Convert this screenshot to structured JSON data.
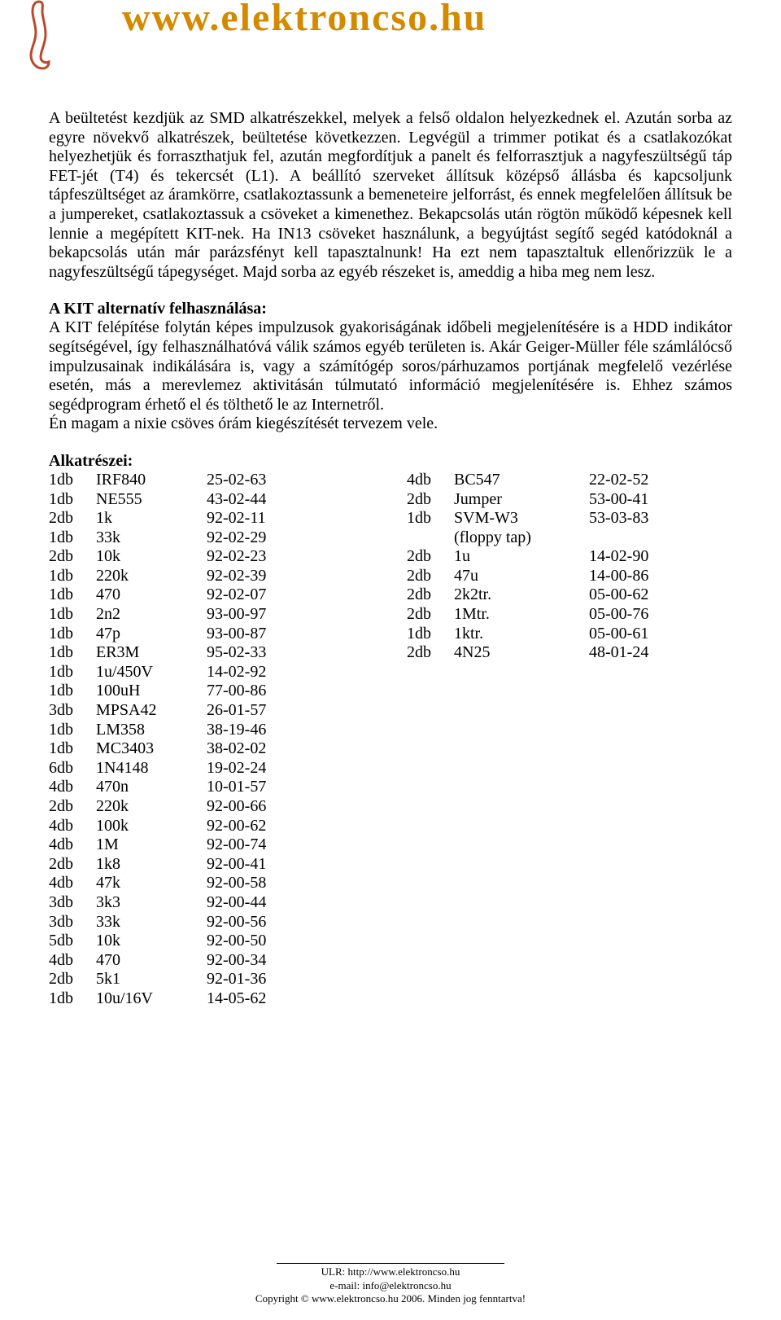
{
  "header": {
    "site_title": "www.elektroncso.hu",
    "title_color": "#d38a00",
    "logo_color": "#d38a00"
  },
  "paragraph1": "A beültetést kezdjük az SMD alkatrészekkel, melyek a felső oldalon helyezkednek el. Azután sorba az egyre növekvő alkatrészek, beültetése következzen. Legvégül a trimmer potikat és a csatlakozókat helyezhetjük és forraszthatjuk fel, azután megfordítjuk a panelt és felforrasztjuk a nagyfeszültségű táp FET-jét (T4) és tekercsét (L1). A beállító szerveket állítsuk középső állásba és kapcsoljunk tápfeszültséget az áramkörre, csatlakoztassunk a bemeneteire jelforrást, és ennek megfelelően állítsuk be a jumpereket, csatlakoztassuk a csöveket a kimenethez. Bekapcsolás után rögtön működő képesnek kell lennie a megépített KIT-nek. Ha  IN13 csöveket használunk, a begyújtást segítő segéd katódoknál a bekapcsolás után már parázsfényt kell tapasztalnunk! Ha ezt nem tapasztaltuk ellenőrizzük le a nagyfeszültségű tápegységet. Majd sorba az egyéb részeket is, ameddig a hiba meg nem lesz.",
  "section2": {
    "heading": "A KIT alternatív felhasználása:",
    "body": "A KIT felépítése folytán képes impulzusok gyakoriságának időbeli megjelenítésére is a HDD indikátor segítségével, így felhasználhatóvá válik számos egyéb területen is. Akár Geiger-Müller féle számlálócső impulzusainak indikálására is, vagy a számítógép soros/párhuzamos portjának megfelelő vezérlése esetén, más a merevlemez aktivitásán túlmutató információ megjelenítésére is. Ehhez számos segédprogram érhető el és tölthető le az Internetről.\nÉn magam a nixie csöves órám kiegészítését tervezem vele."
  },
  "parts": {
    "heading": "Alkatrészei:",
    "left": [
      {
        "qty": "1db",
        "name": "IRF840",
        "code": "25-02-63"
      },
      {
        "qty": "1db",
        "name": "NE555",
        "code": "43-02-44"
      },
      {
        "qty": "2db",
        "name": "1k",
        "code": "92-02-11"
      },
      {
        "qty": "1db",
        "name": "33k",
        "code": "92-02-29"
      },
      {
        "qty": "2db",
        "name": "10k",
        "code": "92-02-23"
      },
      {
        "qty": "1db",
        "name": "220k",
        "code": "92-02-39"
      },
      {
        "qty": "1db",
        "name": "470",
        "code": "92-02-07"
      },
      {
        "qty": "1db",
        "name": "2n2",
        "code": "93-00-97"
      },
      {
        "qty": "1db",
        "name": "47p",
        "code": "93-00-87"
      },
      {
        "qty": "1db",
        "name": "ER3M",
        "code": "95-02-33"
      },
      {
        "qty": "1db",
        "name": "1u/450V",
        "code": "14-02-92"
      },
      {
        "qty": "1db",
        "name": "100uH",
        "code": "77-00-86"
      },
      {
        "qty": "3db",
        "name": "MPSA42",
        "code": "26-01-57"
      },
      {
        "qty": "1db",
        "name": "LM358",
        "code": "38-19-46"
      },
      {
        "qty": "1db",
        "name": "MC3403",
        "code": "38-02-02"
      },
      {
        "qty": "6db",
        "name": "1N4148",
        "code": "19-02-24"
      },
      {
        "qty": "4db",
        "name": "470n",
        "code": "10-01-57"
      },
      {
        "qty": "2db",
        "name": "220k",
        "code": "92-00-66"
      },
      {
        "qty": "4db",
        "name": "100k",
        "code": "92-00-62"
      },
      {
        "qty": "4db",
        "name": "1M",
        "code": "92-00-74"
      },
      {
        "qty": "2db",
        "name": "1k8",
        "code": "92-00-41"
      },
      {
        "qty": "4db",
        "name": "47k",
        "code": "92-00-58"
      },
      {
        "qty": "3db",
        "name": "3k3",
        "code": "92-00-44"
      },
      {
        "qty": "3db",
        "name": "33k",
        "code": "92-00-56"
      },
      {
        "qty": "5db",
        "name": "10k",
        "code": "92-00-50"
      },
      {
        "qty": "4db",
        "name": "470",
        "code": "92-00-34"
      },
      {
        "qty": "2db",
        "name": "5k1",
        "code": "92-01-36"
      },
      {
        "qty": "1db",
        "name": "10u/16V",
        "code": "14-05-62"
      }
    ],
    "right": [
      {
        "qty": "4db",
        "name": "BC547",
        "code": "22-02-52"
      },
      {
        "qty": "2db",
        "name": "Jumper",
        "code": "53-00-41"
      },
      {
        "qty": "1db",
        "name": "SVM-W3",
        "code": "53-03-83",
        "note": "(floppy tap)"
      },
      {
        "qty": "2db",
        "name": "1u",
        "code": "14-02-90"
      },
      {
        "qty": "2db",
        "name": "47u",
        "code": "14-00-86"
      },
      {
        "qty": "2db",
        "name": "2k2tr.",
        "code": "05-00-62"
      },
      {
        "qty": "2db",
        "name": "1Mtr.",
        "code": "05-00-76"
      },
      {
        "qty": "1db",
        "name": "1ktr.",
        "code": "05-00-61"
      },
      {
        "qty": "2db",
        "name": "4N25",
        "code": "48-01-24"
      }
    ]
  },
  "footer": {
    "line1": "ULR: http://www.elektroncso.hu",
    "line2": "e-mail: info@elektroncso.hu",
    "line3": "Copyright © www.elektroncso.hu 2006. Minden jog fenntartva!"
  }
}
